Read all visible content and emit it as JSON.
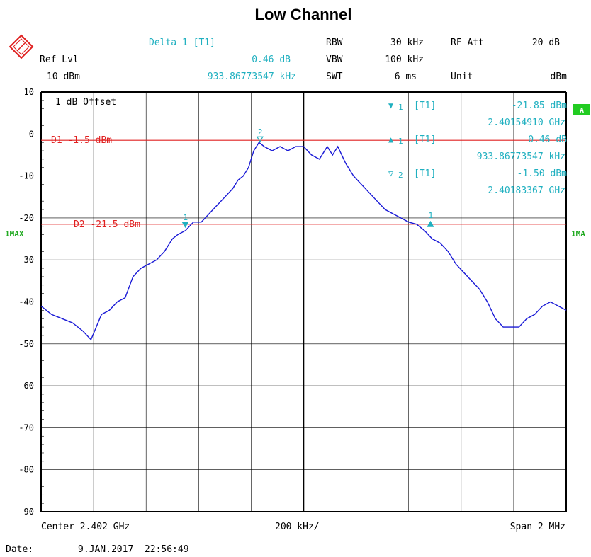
{
  "header": {
    "delta_label": "Delta 1 [T1]",
    "delta_level": "0.46 dB",
    "delta_freq": "933.86773547 kHz",
    "ref_lvl_label": "Ref Lvl",
    "ref_lvl_value": "10 dBm",
    "rbw_label": "RBW",
    "rbw_value": "30 kHz",
    "vbw_label": "VBW",
    "vbw_value": "100 kHz",
    "swt_label": "SWT",
    "swt_value": "6 ms",
    "rfatt_label": "RF Att",
    "rfatt_value": "20 dB",
    "unit_label": "Unit",
    "unit_value": "dBm"
  },
  "offset_label": "1 dB Offset",
  "trace_side_label_left": "1MAX",
  "trace_side_label_right": "1MA",
  "a_badge": "A",
  "markers_readout": [
    {
      "symbol": "▼",
      "id": "1",
      "trace": "[T1]",
      "value": "-21.85 dBm",
      "freq": "2.40154910 GHz"
    },
    {
      "symbol": "▲",
      "id": "1",
      "trace": "[T1]",
      "value": "0.46 dB",
      "freq": "933.86773547 kHz"
    },
    {
      "symbol": "▽",
      "id": "2",
      "trace": "[T1]",
      "value": "-1.50 dBm",
      "freq": "2.40183367 GHz"
    }
  ],
  "lines": [
    {
      "label": "D1",
      "value_text": "-1.5",
      "unit": "dBm",
      "level": -1.5
    },
    {
      "label": "D2",
      "value_text": "-21.5",
      "unit": "dBm",
      "level": -21.5
    }
  ],
  "footer": {
    "center": "Center 2.402 GHz",
    "div": "200 kHz/",
    "span": "Span 2 MHz",
    "date_label": "Date:",
    "date_value": "9.JAN.2017  22:56:49"
  },
  "colors": {
    "trace": "#1a1ad6",
    "display_line": "#e02020",
    "marker": "#20b0c0",
    "badge": "#22cc22",
    "grid": "#000000"
  },
  "chart_data": {
    "type": "line",
    "title": "Low Channel",
    "xlabel": "",
    "ylabel": "",
    "x_unit": "GHz",
    "xlim": [
      2.401,
      2.403
    ],
    "ylim": [
      -90,
      10
    ],
    "yticks": [
      10,
      0,
      -10,
      -20,
      -30,
      -40,
      -50,
      -60,
      -70,
      -80,
      -90
    ],
    "grid": true,
    "series": [
      {
        "x": [
          2.401,
          2.40104,
          2.40108,
          2.40112,
          2.40116,
          2.40119,
          2.40121,
          2.40123,
          2.40126,
          2.40129,
          2.40132,
          2.40135,
          2.40138,
          2.40141,
          2.40144,
          2.40147,
          2.4015,
          2.40152,
          2.40155,
          2.40158,
          2.40161,
          2.40164,
          2.40167,
          2.4017,
          2.40173,
          2.40175,
          2.40177,
          2.40179,
          2.40181,
          2.40183,
          2.40185,
          2.40188,
          2.40191,
          2.40194,
          2.40197,
          2.402,
          2.40203,
          2.40206,
          2.40209,
          2.40211,
          2.40213,
          2.40216,
          2.40219,
          2.40222,
          2.40225,
          2.40228,
          2.40231,
          2.40234,
          2.40237,
          2.4024,
          2.40243,
          2.40246,
          2.40249,
          2.40252,
          2.40255,
          2.40258,
          2.40261,
          2.40264,
          2.40267,
          2.4027,
          2.40273,
          2.40276,
          2.40279,
          2.40282,
          2.40285,
          2.40288,
          2.40291,
          2.40294,
          2.40297,
          2.403
        ],
        "y": [
          -41,
          -43,
          -44,
          -45,
          -47,
          -49,
          -46,
          -43,
          -42,
          -40,
          -39,
          -34,
          -32,
          -31,
          -30,
          -28,
          -25,
          -24,
          -23,
          -21,
          -21,
          -19,
          -17,
          -15,
          -13,
          -11,
          -10,
          -8,
          -4,
          -2,
          -3,
          -4,
          -3,
          -4,
          -3,
          -3,
          -5,
          -6,
          -3,
          -5,
          -3,
          -7,
          -10,
          -12,
          -14,
          -16,
          -18,
          -19,
          -20,
          -21,
          -21.5,
          -23,
          -25,
          -26,
          -28,
          -31,
          -33,
          -35,
          -37,
          -40,
          -44,
          -46,
          -46,
          -46,
          -44,
          -43,
          -41,
          -40,
          -41,
          -42
        ]
      }
    ],
    "markers": [
      {
        "id": "1",
        "x": 2.4015491,
        "y": -21.85
      },
      {
        "id": "2",
        "x": 2.40183367,
        "y": -1.5
      },
      {
        "id": "1",
        "x": 2.40248297,
        "y": -21.39
      }
    ]
  }
}
